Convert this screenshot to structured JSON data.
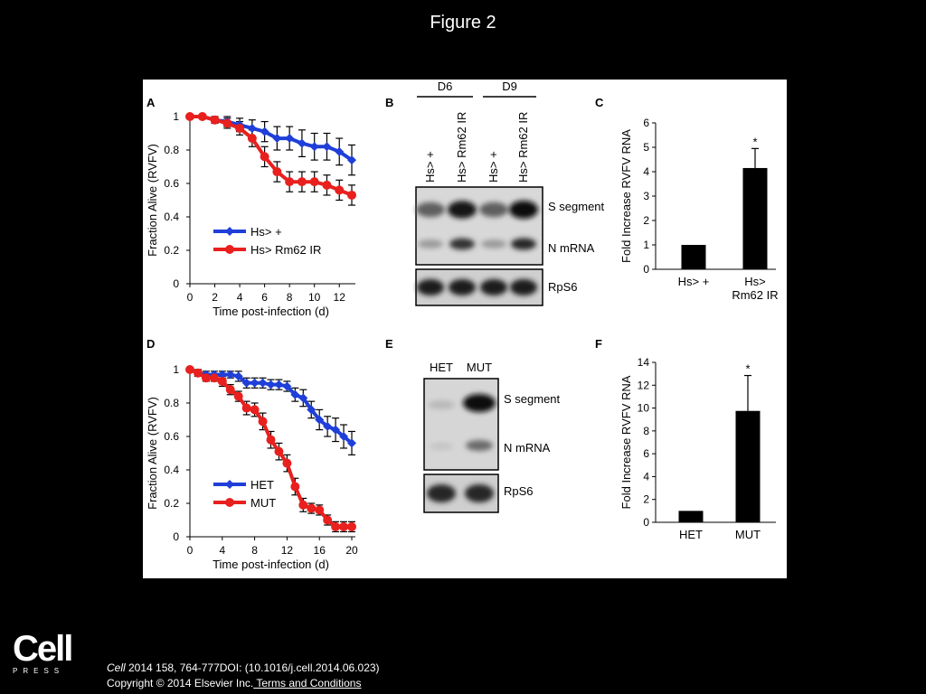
{
  "slide": {
    "title": "Figure 2",
    "logo_word": "Cell",
    "logo_sub": "PRESS",
    "citation_journal": "Cell",
    "citation_rest": " 2014 158, 764-777DOI: (10.1016/j.cell.2014.06.023)",
    "copyright": "Copyright © 2014 Elsevier Inc.",
    "terms_link": " Terms and Conditions"
  },
  "colors": {
    "blue": "#1f3fd8",
    "red": "#e8201e",
    "black": "#000000"
  },
  "chart_data": [
    {
      "panel": "A",
      "type": "line",
      "xlabel": "Time post-infection (d)",
      "ylabel": "Fraction Alive (RVFV)",
      "xlim": [
        0,
        13
      ],
      "ylim": [
        0,
        1
      ],
      "xticks": [
        0,
        2,
        4,
        6,
        8,
        10,
        12
      ],
      "xtick_labels": [
        "0",
        "2",
        "4",
        "6",
        "8",
        "10",
        "12"
      ],
      "yticks": [
        0,
        0.2,
        0.4,
        0.6,
        0.8,
        1
      ],
      "ytick_labels": [
        "0",
        "0.2",
        "0.4",
        "0.6",
        "0.8",
        "1"
      ],
      "legend": "lower-left",
      "series": [
        {
          "name": "Hs> +",
          "color": "blue",
          "x": [
            0,
            1,
            2,
            3,
            4,
            5,
            6,
            7,
            8,
            9,
            10,
            11,
            12,
            13
          ],
          "y": [
            1,
            1,
            0.98,
            0.97,
            0.95,
            0.93,
            0.91,
            0.87,
            0.87,
            0.84,
            0.82,
            0.82,
            0.79,
            0.74
          ],
          "err": [
            0,
            0,
            0.02,
            0.03,
            0.04,
            0.05,
            0.06,
            0.07,
            0.07,
            0.08,
            0.08,
            0.08,
            0.08,
            0.09
          ]
        },
        {
          "name": "Hs> Rm62 IR",
          "color": "red",
          "x": [
            0,
            1,
            2,
            3,
            4,
            5,
            6,
            7,
            8,
            9,
            10,
            11,
            12,
            13
          ],
          "y": [
            1,
            1,
            0.98,
            0.96,
            0.93,
            0.87,
            0.76,
            0.67,
            0.61,
            0.61,
            0.61,
            0.59,
            0.56,
            0.53
          ],
          "err": [
            0,
            0,
            0.02,
            0.03,
            0.04,
            0.05,
            0.06,
            0.06,
            0.06,
            0.06,
            0.06,
            0.06,
            0.06,
            0.06
          ]
        }
      ]
    },
    {
      "panel": "C",
      "type": "bar",
      "ylabel": "Fold Increase RVFV RNA",
      "categories": [
        "Hs> +",
        "Hs> Rm62 IR"
      ],
      "category_lines": [
        [
          "Hs> +"
        ],
        [
          "Hs>",
          "Rm62 IR"
        ]
      ],
      "values": [
        1,
        4.15
      ],
      "err": [
        0,
        0.8
      ],
      "significance": [
        "",
        "*"
      ],
      "ylim": [
        0,
        6
      ],
      "yticks": [
        0,
        1,
        2,
        3,
        4,
        5,
        6
      ],
      "ytick_labels": [
        "0",
        "1",
        "2",
        "3",
        "4",
        "5",
        "6"
      ]
    },
    {
      "panel": "D",
      "type": "line",
      "xlabel": "Time post-infection (d)",
      "ylabel": "Fraction Alive (RVFV)",
      "xlim": [
        0,
        20
      ],
      "ylim": [
        0,
        1
      ],
      "xticks": [
        0,
        4,
        8,
        12,
        16,
        20
      ],
      "xtick_labels": [
        "0",
        "4",
        "8",
        "12",
        "16",
        "20"
      ],
      "yticks": [
        0,
        0.2,
        0.4,
        0.6,
        0.8,
        1
      ],
      "ytick_labels": [
        "0",
        "0.2",
        "0.4",
        "0.6",
        "0.8",
        "1"
      ],
      "legend": "lower-left",
      "series": [
        {
          "name": "HET",
          "color": "blue",
          "x": [
            0,
            1,
            2,
            3,
            4,
            5,
            6,
            7,
            8,
            9,
            10,
            11,
            12,
            13,
            14,
            15,
            16,
            17,
            18,
            19,
            20
          ],
          "y": [
            1,
            0.98,
            0.97,
            0.97,
            0.97,
            0.97,
            0.96,
            0.92,
            0.92,
            0.92,
            0.91,
            0.91,
            0.9,
            0.85,
            0.83,
            0.76,
            0.7,
            0.66,
            0.64,
            0.6,
            0.56
          ],
          "err": [
            0,
            0.02,
            0.02,
            0.02,
            0.02,
            0.02,
            0.03,
            0.03,
            0.03,
            0.03,
            0.03,
            0.03,
            0.03,
            0.04,
            0.05,
            0.05,
            0.06,
            0.06,
            0.07,
            0.07,
            0.07
          ]
        },
        {
          "name": "MUT",
          "color": "red",
          "x": [
            0,
            1,
            2,
            3,
            4,
            5,
            6,
            7,
            8,
            9,
            10,
            11,
            12,
            13,
            14,
            15,
            16,
            17,
            18,
            19,
            20
          ],
          "y": [
            1,
            0.98,
            0.95,
            0.95,
            0.93,
            0.88,
            0.84,
            0.77,
            0.76,
            0.69,
            0.58,
            0.51,
            0.44,
            0.3,
            0.19,
            0.17,
            0.16,
            0.1,
            0.06,
            0.06,
            0.06
          ],
          "err": [
            0,
            0.02,
            0.02,
            0.02,
            0.03,
            0.03,
            0.03,
            0.04,
            0.04,
            0.05,
            0.05,
            0.05,
            0.05,
            0.05,
            0.04,
            0.03,
            0.03,
            0.03,
            0.03,
            0.03,
            0.03
          ]
        }
      ]
    },
    {
      "panel": "F",
      "type": "bar",
      "ylabel": "Fold Increase RVFV RNA",
      "categories": [
        "HET",
        "MUT"
      ],
      "category_lines": [
        [
          "HET"
        ],
        [
          "MUT"
        ]
      ],
      "values": [
        1,
        9.75
      ],
      "err": [
        0,
        3.1
      ],
      "significance": [
        "",
        "*"
      ],
      "ylim": [
        0,
        14
      ],
      "yticks": [
        0,
        2,
        4,
        6,
        8,
        10,
        12,
        14
      ],
      "ytick_labels": [
        "0",
        "2",
        "4",
        "6",
        "8",
        "10",
        "12",
        "14"
      ]
    }
  ],
  "blots": {
    "B": {
      "panel": "B",
      "groups": [
        "D6",
        "D9"
      ],
      "lanes": [
        "Hs> +",
        "Hs> Rm62 IR",
        "Hs> +",
        "Hs> Rm62 IR"
      ],
      "bands": [
        "S segment",
        "N mRNA",
        "RpS6"
      ]
    },
    "E": {
      "panel": "E",
      "lanes": [
        "HET",
        "MUT"
      ],
      "bands": [
        "S segment",
        "N mRNA",
        "RpS6"
      ]
    }
  }
}
